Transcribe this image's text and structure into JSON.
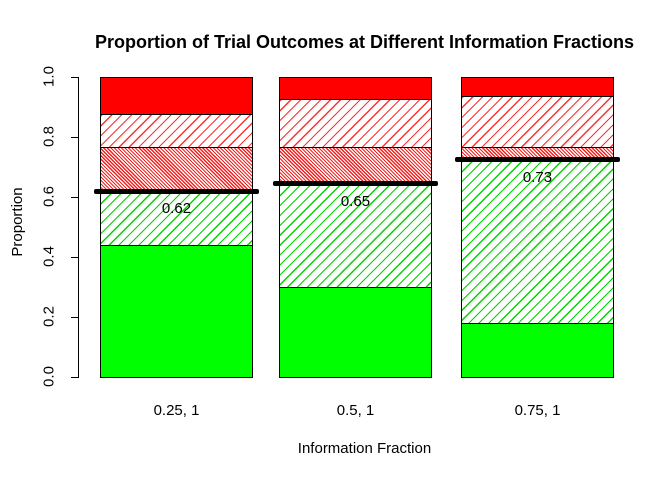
{
  "chart_data": {
    "type": "bar",
    "stacked": true,
    "title": "Proportion of Trial Outcomes at Different Information Fractions",
    "xlabel": "Information Fraction",
    "ylabel": "Proportion",
    "ylim": [
      0,
      1
    ],
    "yticks": [
      "0.0",
      "0.2",
      "0.4",
      "0.6",
      "0.8",
      "1.0"
    ],
    "grid": false,
    "legend": "none",
    "categories": [
      "0.25, 1",
      "0.5, 1",
      "0.75, 1"
    ],
    "series": [
      {
        "name": "green-solid",
        "style": "green-solid",
        "values": [
          0.44,
          0.3,
          0.18
        ]
      },
      {
        "name": "green-hatch",
        "style": "green-hatch",
        "values": [
          0.18,
          0.345,
          0.545
        ]
      },
      {
        "name": "red-dense-hatch",
        "style": "red-dense-hatch",
        "values": [
          0.15,
          0.125,
          0.045
        ]
      },
      {
        "name": "red-sparse-hatch",
        "style": "red-sparse-hatch",
        "values": [
          0.11,
          0.16,
          0.17
        ]
      },
      {
        "name": "red-solid",
        "style": "red-solid",
        "values": [
          0.12,
          0.07,
          0.06
        ]
      }
    ],
    "threshold_lines": [
      {
        "category_index": 0,
        "value": 0.62,
        "label": "0.62"
      },
      {
        "category_index": 1,
        "value": 0.645,
        "label": "0.65"
      },
      {
        "category_index": 2,
        "value": 0.725,
        "label": "0.73"
      }
    ],
    "colors": {
      "green": "#00FF00",
      "red": "#FF0000",
      "threshold": "#000000",
      "background": "#FFFFFF"
    }
  }
}
